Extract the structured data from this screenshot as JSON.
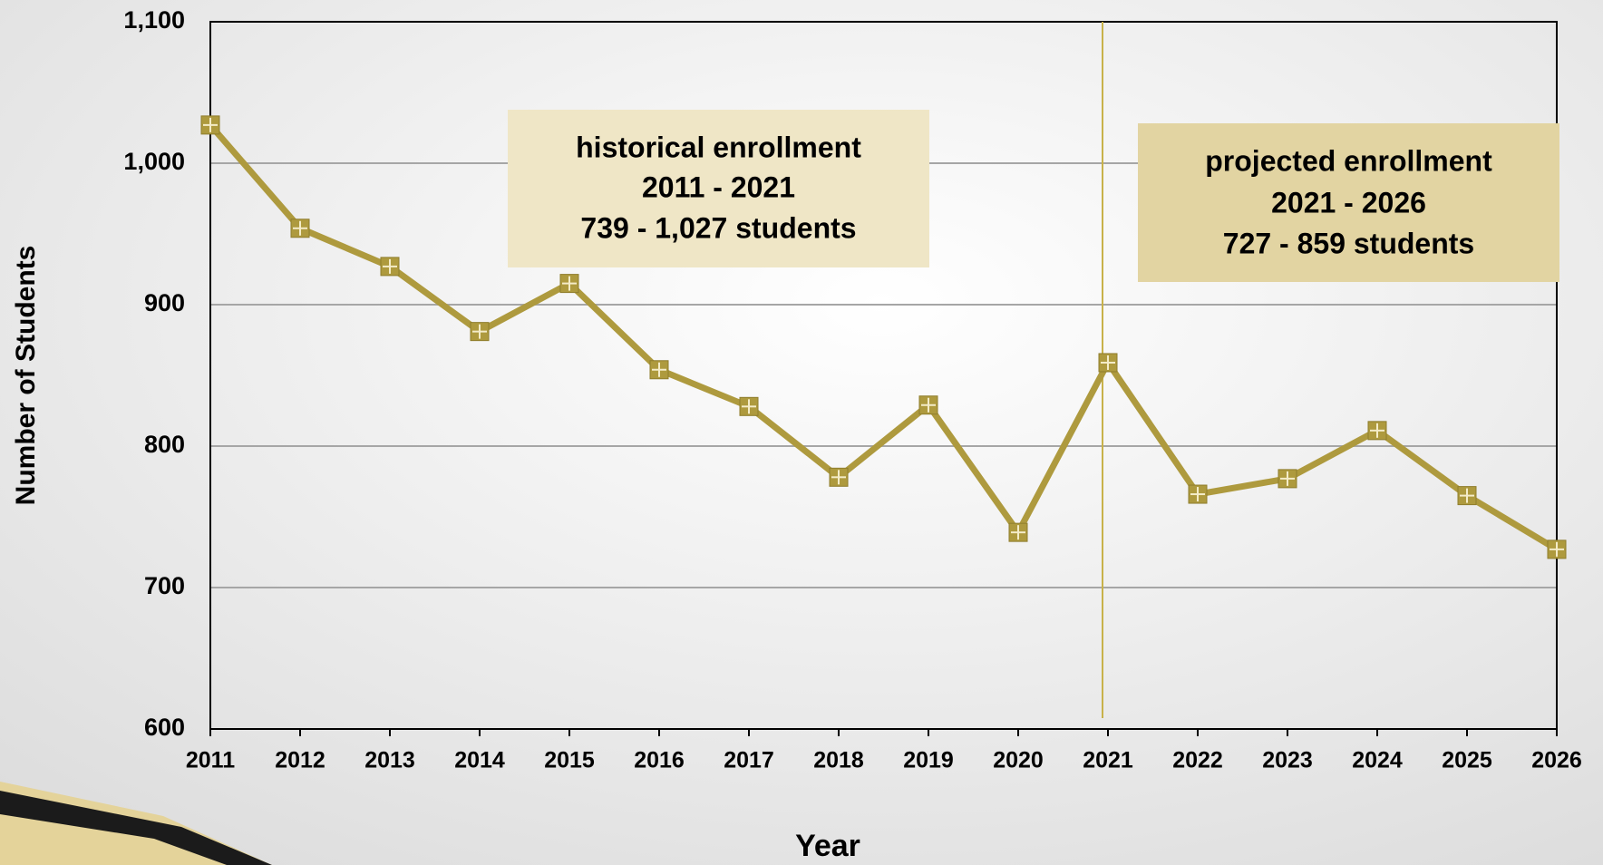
{
  "chart_data": {
    "type": "line",
    "y_label": "Number of Students",
    "x_label": "Year",
    "categories": [
      "2011",
      "2012",
      "2013",
      "2014",
      "2015",
      "2016",
      "2017",
      "2018",
      "2019",
      "2020",
      "2021",
      "2022",
      "2023",
      "2024",
      "2025",
      "2026"
    ],
    "series": [
      {
        "name": "Enrollment",
        "color": "#ae9a3e",
        "values": [
          1027,
          954,
          927,
          881,
          915,
          854,
          828,
          778,
          829,
          739,
          859,
          766,
          777,
          811,
          765,
          727
        ]
      }
    ],
    "ylim": [
      600,
      1100
    ],
    "yticks": [
      600,
      700,
      800,
      900,
      {
        "value": 1000,
        "label": "1,000"
      },
      {
        "value": 1100,
        "label": "1,100"
      }
    ],
    "grid": true,
    "divider": "2021",
    "annotations": [
      {
        "lines": [
          "historical enrollment",
          "2011 - 2021",
          "739 - 1,027 students"
        ],
        "color": "#efe6c6"
      },
      {
        "lines": [
          "projected enrollment",
          "2021 - 2026",
          "727 - 859 students"
        ],
        "color": "#e2d4a2"
      }
    ]
  }
}
